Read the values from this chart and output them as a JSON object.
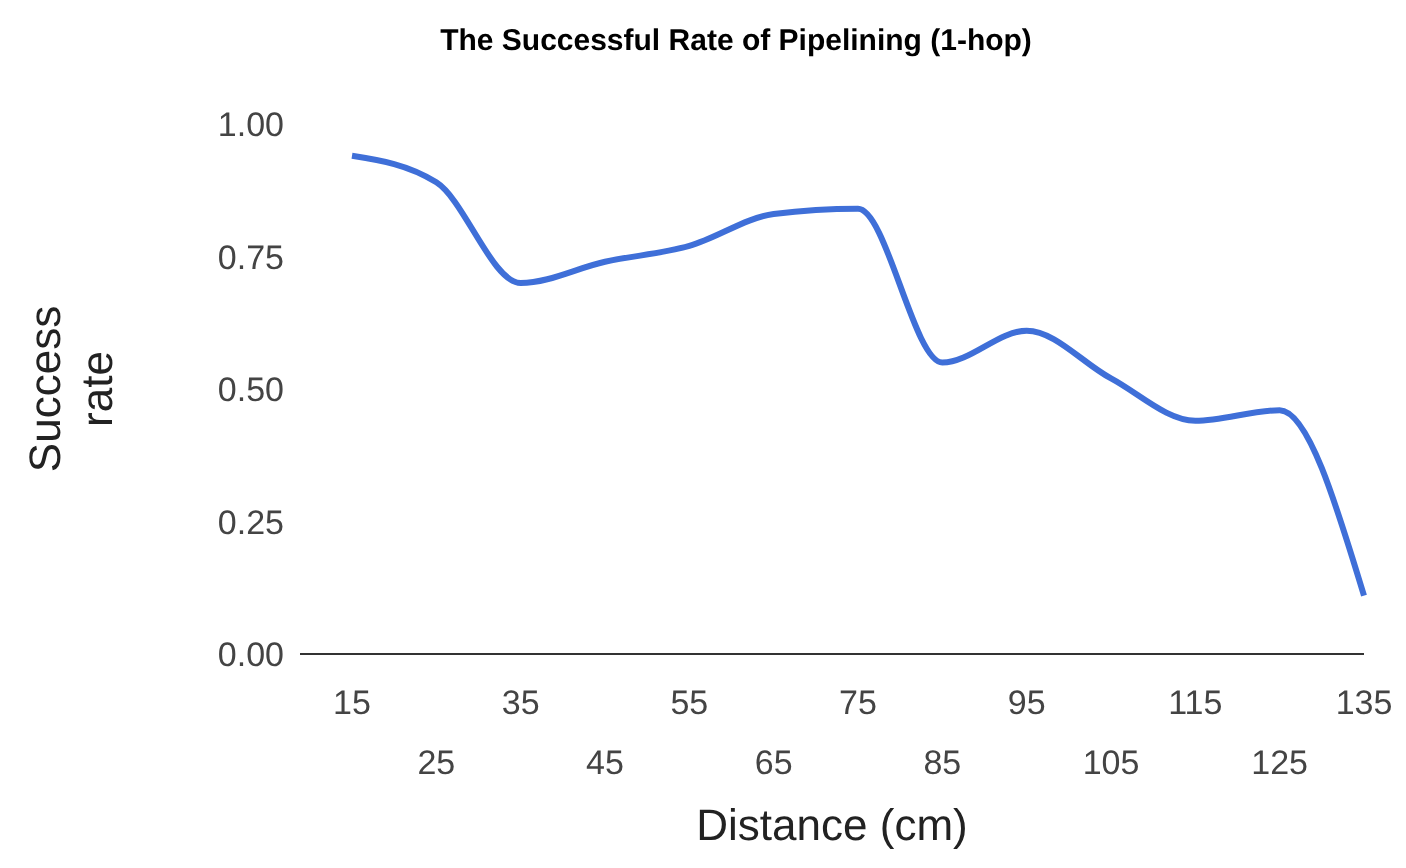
{
  "chart_data": {
    "type": "line",
    "title": "The Successful Rate of Pipelining (1-hop)",
    "xlabel": "Distance (cm)",
    "ylabel": "Success rate",
    "categories": [
      "15",
      "25",
      "35",
      "45",
      "55",
      "65",
      "75",
      "85",
      "95",
      "105",
      "115",
      "125",
      "135"
    ],
    "series": [
      {
        "color": "#3f6fd8",
        "values": [
          0.94,
          0.89,
          0.7,
          0.74,
          0.77,
          0.83,
          0.84,
          0.55,
          0.61,
          0.52,
          0.44,
          0.46,
          0.11
        ]
      }
    ],
    "ylim": [
      0,
      1
    ],
    "yticks": [
      {
        "value": 0,
        "label": "0.00"
      },
      {
        "value": 0.25,
        "label": "0.25"
      },
      {
        "value": 0.5,
        "label": "0.50"
      },
      {
        "value": 0.75,
        "label": "0.75"
      },
      {
        "value": 1,
        "label": "1.00"
      }
    ],
    "marker": "none",
    "line_style": "solid",
    "legend": false,
    "grid": false
  }
}
